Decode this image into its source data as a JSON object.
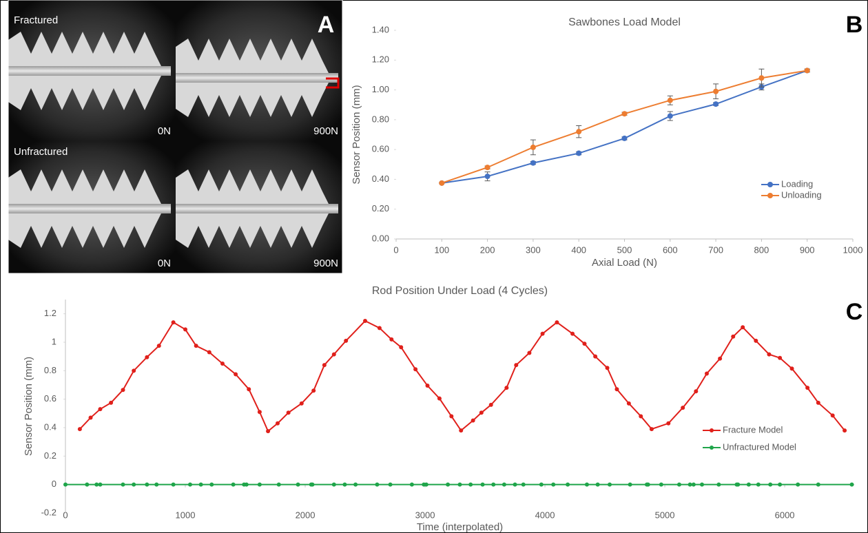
{
  "panel_labels": [
    "A",
    "B",
    "C"
  ],
  "images": [
    {
      "caption": "Fractured",
      "load": "0N"
    },
    {
      "load": "900N"
    },
    {
      "caption": "Unfractured",
      "load": "0N"
    },
    {
      "load": "900N"
    }
  ],
  "chart_data": [
    {
      "type": "line",
      "title": "Sawbones Load Model",
      "x_label": "Axial Load (N)",
      "y_label": "Sensor Position (mm)",
      "x": [
        100,
        200,
        300,
        400,
        500,
        600,
        700,
        800,
        900
      ],
      "xlim": [
        0,
        1000
      ],
      "xticks": [
        0,
        100,
        200,
        300,
        400,
        500,
        600,
        700,
        800,
        900,
        1000
      ],
      "ylim": [
        0,
        1.4
      ],
      "yticks": [
        {
          "value": 0,
          "label": "0.00"
        },
        {
          "value": 0.2,
          "label": "0.20"
        },
        {
          "value": 0.4,
          "label": "0.40"
        },
        {
          "value": 0.6,
          "label": "0.60"
        },
        {
          "value": 0.8,
          "label": "0.80"
        },
        {
          "value": 1,
          "label": "1.00"
        },
        {
          "value": 1.2,
          "label": "1.20"
        },
        {
          "value": 1.4,
          "label": "1.40"
        }
      ],
      "legend": "lower right",
      "series": [
        {
          "name": "Loading",
          "color": "#4472c4",
          "values": [
            0.375,
            0.42,
            0.51,
            0.575,
            0.675,
            0.825,
            0.905,
            1.02,
            1.13
          ],
          "errors": [
            0,
            0.03,
            0.01,
            0.01,
            0.01,
            0.03,
            0.01,
            0.02,
            0.01
          ]
        },
        {
          "name": "Unloading",
          "color": "#ed7d31",
          "values": [
            0.375,
            0.48,
            0.615,
            0.72,
            0.84,
            0.93,
            0.99,
            1.08,
            1.13
          ],
          "errors": [
            0,
            0.01,
            0.05,
            0.04,
            0.01,
            0.03,
            0.05,
            0.06,
            0.01
          ]
        }
      ]
    },
    {
      "type": "line",
      "title": "Rod Position Under Load (4 Cycles)",
      "x_label": "Time (interpolated)",
      "y_label": "Sensor Position (mm)",
      "xlim": [
        0,
        6580
      ],
      "xticks": [
        0,
        1000,
        2000,
        3000,
        4000,
        5000,
        6000
      ],
      "ylim": [
        -0.2,
        1.3
      ],
      "yticks": [
        -0.2,
        0,
        0.2,
        0.4,
        0.6,
        0.8,
        1,
        1.2
      ],
      "legend": "lower right",
      "series": [
        {
          "name": "Fracture Model",
          "color": "#e0201b",
          "x": [
            120,
            210,
            290,
            380,
            480,
            570,
            680,
            780,
            900,
            1000,
            1090,
            1200,
            1310,
            1420,
            1530,
            1620,
            1690,
            1770,
            1860,
            1970,
            2070,
            2160,
            2240,
            2340,
            2500,
            2620,
            2720,
            2800,
            2920,
            3020,
            3120,
            3220,
            3300,
            3400,
            3470,
            3550,
            3680,
            3760,
            3870,
            3980,
            4100,
            4230,
            4330,
            4420,
            4520,
            4600,
            4700,
            4800,
            4890,
            5030,
            5150,
            5260,
            5350,
            5460,
            5570,
            5650,
            5760,
            5870,
            5960,
            6060,
            6190,
            6280,
            6400,
            6500
          ],
          "values": [
            0.39,
            0.47,
            0.53,
            0.575,
            0.665,
            0.8,
            0.895,
            0.975,
            1.14,
            1.09,
            0.975,
            0.93,
            0.85,
            0.775,
            0.67,
            0.51,
            0.375,
            0.43,
            0.505,
            0.57,
            0.66,
            0.84,
            0.915,
            1.01,
            1.15,
            1.1,
            1.02,
            0.965,
            0.81,
            0.695,
            0.605,
            0.48,
            0.38,
            0.45,
            0.505,
            0.56,
            0.68,
            0.84,
            0.925,
            1.06,
            1.14,
            1.06,
            0.99,
            0.9,
            0.82,
            0.67,
            0.57,
            0.48,
            0.39,
            0.43,
            0.54,
            0.655,
            0.78,
            0.885,
            1.04,
            1.105,
            1.01,
            0.915,
            0.89,
            0.815,
            0.68,
            0.575,
            0.485,
            0.38
          ]
        },
        {
          "name": "Unfractured Model",
          "color": "#1fa54a",
          "x": [
            0,
            180,
            260,
            290,
            480,
            570,
            680,
            760,
            900,
            1040,
            1130,
            1220,
            1400,
            1490,
            1510,
            1620,
            1780,
            1940,
            2050,
            2060,
            2240,
            2330,
            2420,
            2600,
            2710,
            2890,
            2990,
            3010,
            3190,
            3290,
            3380,
            3480,
            3570,
            3660,
            3750,
            3820,
            3970,
            4070,
            4190,
            4350,
            4440,
            4540,
            4710,
            4850,
            4860,
            4970,
            5120,
            5210,
            5240,
            5310,
            5450,
            5600,
            5610,
            5700,
            5780,
            5880,
            5960,
            6110,
            6280,
            6560
          ],
          "values": [
            0,
            0,
            0,
            0,
            0,
            0,
            0,
            0,
            0,
            0,
            0,
            0,
            0,
            0,
            0,
            0,
            0,
            0,
            0,
            0,
            0,
            0,
            0,
            0,
            0,
            0,
            0,
            0,
            0,
            0,
            0,
            0,
            0,
            0,
            0,
            0,
            0,
            0,
            0,
            0,
            0,
            0,
            0,
            0,
            0,
            0,
            0,
            0,
            0,
            0,
            0,
            0,
            0,
            0,
            0,
            0,
            0,
            0,
            0,
            0
          ]
        }
      ]
    }
  ]
}
